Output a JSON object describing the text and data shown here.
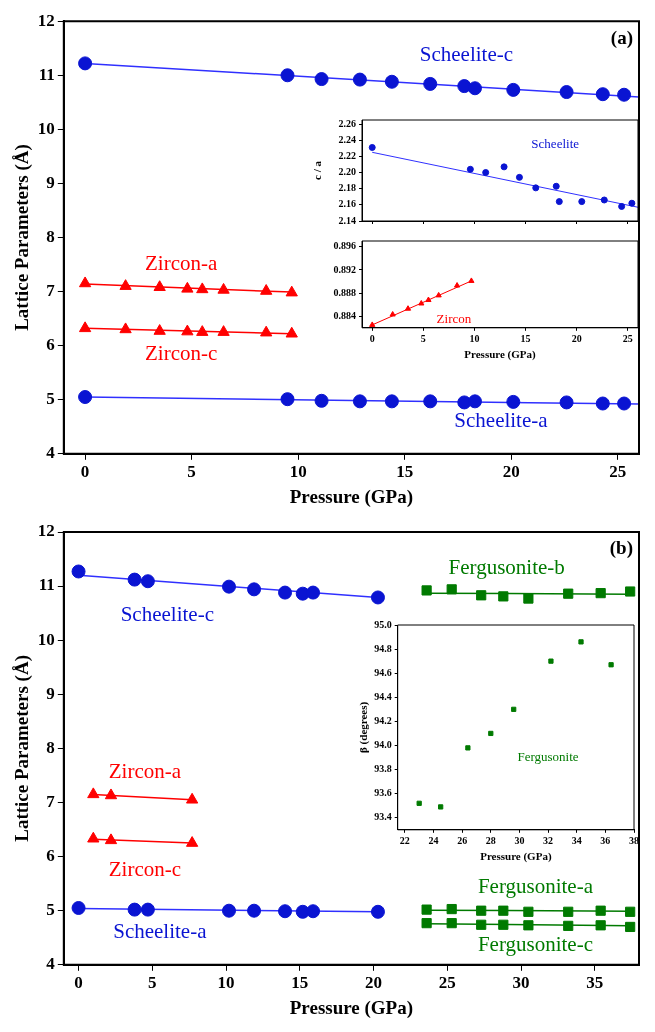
{
  "chart_data": [
    {
      "type": "scatter",
      "xlabel": "Pressure (GPa)",
      "ylabel": "Lattice Parameters (Å)",
      "xlim": [
        -1,
        26
      ],
      "xticks": [
        0,
        5,
        10,
        15,
        20,
        25
      ],
      "ylim": [
        4,
        12
      ],
      "yticks": [
        4,
        5,
        6,
        7,
        8,
        9,
        10,
        11,
        12
      ],
      "grid": false,
      "legend": false,
      "annotations": [
        "(a)"
      ],
      "series": [
        {
          "name": "Scheelite-c",
          "type": "scatter",
          "marker": "circle",
          "color": "#0a14d2",
          "x": [
            0,
            9.5,
            11.1,
            12.9,
            14.4,
            16.2,
            17.8,
            18.3,
            20.1,
            22.6,
            24.3,
            25.3
          ],
          "values": [
            11.22,
            11.0,
            10.93,
            10.92,
            10.88,
            10.84,
            10.8,
            10.76,
            10.73,
            10.69,
            10.65,
            10.64
          ]
        },
        {
          "type": "line",
          "marker": "none",
          "color": "#3030ff",
          "x": [
            0,
            26
          ],
          "values": [
            11.22,
            10.6
          ]
        },
        {
          "name": "Zircon-a",
          "type": "scatter",
          "marker": "triangle",
          "color": "#ff0000",
          "x": [
            0,
            1.9,
            3.5,
            4.8,
            5.5,
            6.5,
            8.5,
            9.7
          ],
          "values": [
            7.15,
            7.1,
            7.08,
            7.05,
            7.04,
            7.03,
            7.01,
            6.98
          ]
        },
        {
          "type": "line",
          "marker": "none",
          "color": "#ff0000",
          "x": [
            0,
            9.7
          ],
          "values": [
            7.14,
            6.99
          ]
        },
        {
          "name": "Zircon-c",
          "type": "scatter",
          "marker": "triangle",
          "color": "#ff0000",
          "x": [
            0,
            1.9,
            3.5,
            4.8,
            5.5,
            6.5,
            8.5,
            9.7
          ],
          "values": [
            6.32,
            6.3,
            6.27,
            6.26,
            6.25,
            6.25,
            6.24,
            6.22
          ]
        },
        {
          "type": "line",
          "marker": "none",
          "color": "#ff0000",
          "x": [
            0,
            9.7
          ],
          "values": [
            6.32,
            6.22
          ]
        },
        {
          "name": "Scheelite-a",
          "type": "scatter",
          "marker": "circle",
          "color": "#0a14d2",
          "x": [
            0,
            9.5,
            11.1,
            12.9,
            14.4,
            16.2,
            17.8,
            18.3,
            20.1,
            22.6,
            24.3,
            25.3
          ],
          "values": [
            5.05,
            5.01,
            4.98,
            4.97,
            4.97,
            4.97,
            4.95,
            4.97,
            4.96,
            4.95,
            4.93,
            4.93
          ]
        },
        {
          "type": "line",
          "marker": "none",
          "color": "#3030ff",
          "x": [
            0,
            26
          ],
          "values": [
            5.05,
            4.92
          ]
        }
      ]
    },
    {
      "type": "scatter",
      "ylabel": "c / a",
      "xlim": [
        -1,
        26
      ],
      "xticks": [
        0,
        5,
        10,
        15,
        20,
        25
      ],
      "ylim": [
        2.14,
        2.265
      ],
      "yticks": [
        2.14,
        2.16,
        2.18,
        {
          "value": 2.2,
          "label": "2.20"
        },
        2.22,
        2.24,
        2.26
      ],
      "tick_labels": "y",
      "grid": false,
      "legend": false,
      "series": [
        {
          "name": "Scheelite",
          "type": "scatter",
          "marker": "circle",
          "color": "#0a14d2",
          "x": [
            0,
            9.6,
            11.1,
            12.9,
            14.4,
            16,
            18,
            18.3,
            20.5,
            22.7,
            24.4,
            25.4
          ],
          "values": [
            2.231,
            2.204,
            2.2,
            2.207,
            2.194,
            2.181,
            2.183,
            2.164,
            2.164,
            2.166,
            2.158,
            2.162
          ]
        },
        {
          "type": "line",
          "marker": "none",
          "color": "#3030ff",
          "x": [
            0,
            26
          ],
          "values": [
            2.225,
            2.157
          ]
        }
      ]
    },
    {
      "type": "scatter",
      "xlabel": "Pressure (GPa)",
      "xlim": [
        -1,
        26
      ],
      "xticks": [
        0,
        5,
        10,
        15,
        20,
        25
      ],
      "ylim": [
        0.882,
        0.897
      ],
      "yticks": [
        0.884,
        0.888,
        0.892,
        0.896
      ],
      "grid": false,
      "legend": false,
      "series": [
        {
          "name": "Zircon",
          "type": "scatter",
          "marker": "triangle",
          "color": "#ff0000",
          "x": [
            0,
            2,
            3.5,
            4.8,
            5.5,
            6.5,
            8.3,
            9.7
          ],
          "values": [
            0.8825,
            0.8843,
            0.8853,
            0.8862,
            0.8868,
            0.8876,
            0.8893,
            0.8901
          ]
        },
        {
          "type": "line",
          "marker": "none",
          "color": "#ff0000",
          "x": [
            0,
            9.7
          ],
          "values": [
            0.8825,
            0.8901
          ]
        }
      ]
    },
    {
      "type": "scatter",
      "xlabel": "Pressure (GPa)",
      "ylabel": "Lattice Parameters (Å)",
      "xlim": [
        -1,
        38
      ],
      "xticks": [
        0,
        5,
        10,
        15,
        20,
        25,
        30,
        35
      ],
      "ylim": [
        4,
        12
      ],
      "yticks": [
        4,
        5,
        6,
        7,
        8,
        9,
        10,
        11,
        12
      ],
      "grid": false,
      "legend": false,
      "annotations": [
        "(b)"
      ],
      "series": [
        {
          "name": "Scheelite-c",
          "type": "scatter",
          "marker": "circle",
          "color": "#0a14d2",
          "x": [
            0,
            3.8,
            4.7,
            10.2,
            11.9,
            14,
            15.2,
            15.9,
            20.3
          ],
          "values": [
            11.27,
            11.12,
            11.09,
            10.99,
            10.94,
            10.88,
            10.86,
            10.88,
            10.79
          ]
        },
        {
          "type": "line",
          "marker": "none",
          "color": "#3030ff",
          "x": [
            0,
            20.3
          ],
          "values": [
            11.2,
            10.79
          ]
        },
        {
          "name": "Fergusonite-b",
          "type": "scatter",
          "marker": "square",
          "color": "#007a00",
          "x": [
            23.6,
            25.3,
            27.3,
            28.8,
            30.5,
            33.2,
            35.4,
            37.4
          ],
          "values": [
            10.92,
            10.94,
            10.83,
            10.81,
            10.77,
            10.86,
            10.87,
            10.9
          ]
        },
        {
          "type": "line",
          "marker": "none",
          "color": "#007a00",
          "x": [
            23.6,
            37.4
          ],
          "values": [
            10.87,
            10.85
          ]
        },
        {
          "name": "Zircon-a",
          "type": "scatter",
          "marker": "triangle",
          "color": "#ff0000",
          "x": [
            1,
            2.2,
            7.7
          ],
          "values": [
            7.15,
            7.13,
            7.05
          ]
        },
        {
          "type": "line",
          "marker": "none",
          "color": "#ff0000",
          "x": [
            1,
            7.7
          ],
          "values": [
            7.15,
            7.05
          ]
        },
        {
          "name": "Zircon-c",
          "type": "scatter",
          "marker": "triangle",
          "color": "#ff0000",
          "x": [
            1,
            2.2,
            7.7
          ],
          "values": [
            6.33,
            6.3,
            6.25
          ]
        },
        {
          "type": "line",
          "marker": "none",
          "color": "#ff0000",
          "x": [
            1,
            7.7
          ],
          "values": [
            6.32,
            6.25
          ]
        },
        {
          "name": "Scheelite-a",
          "type": "scatter",
          "marker": "circle",
          "color": "#0a14d2",
          "x": [
            0,
            3.8,
            4.7,
            10.2,
            11.9,
            14,
            15.2,
            15.9,
            20.3
          ],
          "values": [
            5.05,
            5.02,
            5.02,
            5.0,
            5.0,
            4.99,
            4.98,
            4.99,
            4.98
          ]
        },
        {
          "type": "line",
          "marker": "none",
          "color": "#3030ff",
          "x": [
            0,
            20.3
          ],
          "values": [
            5.04,
            4.98
          ]
        },
        {
          "name": "Fergusonite-a",
          "type": "scatter",
          "marker": "square",
          "color": "#007a00",
          "x": [
            23.6,
            25.3,
            27.3,
            28.8,
            30.5,
            33.2,
            35.4,
            37.4
          ],
          "values": [
            5.02,
            5.03,
            5.0,
            5.0,
            4.98,
            4.98,
            5.0,
            4.98
          ]
        },
        {
          "type": "line",
          "marker": "none",
          "color": "#007a00",
          "x": [
            23.6,
            37.4
          ],
          "values": [
            5.01,
            4.99
          ]
        },
        {
          "name": "Fergusonite-c",
          "type": "scatter",
          "marker": "square",
          "color": "#007a00",
          "x": [
            23.6,
            25.3,
            27.3,
            28.8,
            30.5,
            33.2,
            35.4,
            37.4
          ],
          "values": [
            4.77,
            4.77,
            4.74,
            4.74,
            4.73,
            4.72,
            4.73,
            4.7
          ]
        },
        {
          "type": "line",
          "marker": "none",
          "color": "#007a00",
          "x": [
            23.6,
            37.4
          ],
          "values": [
            4.76,
            4.72
          ]
        }
      ]
    },
    {
      "type": "scatter",
      "xlabel": "Pressure (GPa)",
      "ylabel": "β (degrees)",
      "xlim": [
        21.5,
        38
      ],
      "xticks": [
        22,
        24,
        26,
        28,
        30,
        32,
        34,
        36,
        38
      ],
      "ylim": [
        93.3,
        95.0
      ],
      "yticks": [
        93.4,
        93.6,
        93.8,
        {
          "value": 94,
          "label": "94.0"
        },
        94.2,
        94.4,
        94.6,
        94.8,
        {
          "value": 95,
          "label": "95.0"
        }
      ],
      "grid": false,
      "legend": false,
      "series": [
        {
          "name": "Fergusonite",
          "type": "scatter",
          "marker": "square",
          "color": "#007a00",
          "x": [
            23,
            24.5,
            26.4,
            28,
            29.6,
            32.2,
            34.3,
            36.4
          ],
          "values": [
            93.52,
            93.49,
            93.98,
            94.1,
            94.3,
            94.7,
            94.86,
            94.67
          ]
        }
      ]
    }
  ]
}
